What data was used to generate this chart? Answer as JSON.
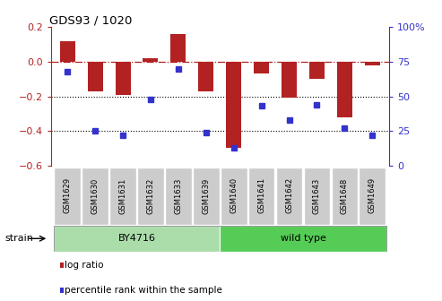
{
  "title": "GDS93 / 1020",
  "samples": [
    "GSM1629",
    "GSM1630",
    "GSM1631",
    "GSM1632",
    "GSM1633",
    "GSM1639",
    "GSM1640",
    "GSM1641",
    "GSM1642",
    "GSM1643",
    "GSM1648",
    "GSM1649"
  ],
  "log_ratio": [
    0.12,
    -0.17,
    -0.19,
    0.02,
    0.16,
    -0.17,
    -0.5,
    -0.07,
    -0.21,
    -0.1,
    -0.32,
    -0.02
  ],
  "percentile": [
    68,
    25,
    22,
    48,
    70,
    24,
    13,
    43,
    33,
    44,
    27,
    22
  ],
  "bar_color": "#b22222",
  "dot_color": "#3333cc",
  "ylim_left": [
    -0.6,
    0.2
  ],
  "ylim_right": [
    0,
    100
  ],
  "yticks_left": [
    -0.6,
    -0.4,
    -0.2,
    0.0,
    0.2
  ],
  "yticks_right": [
    0,
    25,
    50,
    75,
    100
  ],
  "ytick_labels_right": [
    "0",
    "25",
    "50",
    "75",
    "100%"
  ],
  "dotted_lines": [
    -0.2,
    -0.4
  ],
  "dashdot_line": 0.0,
  "strain_groups": [
    {
      "label": "BY4716",
      "start": 0,
      "end": 6,
      "color": "#aaddaa"
    },
    {
      "label": "wild type",
      "start": 6,
      "end": 12,
      "color": "#55cc55"
    }
  ],
  "strain_label": "strain",
  "legend_items": [
    {
      "label": "log ratio",
      "color": "#b22222"
    },
    {
      "label": "percentile rank within the sample",
      "color": "#3333cc"
    }
  ],
  "bar_width": 0.55
}
